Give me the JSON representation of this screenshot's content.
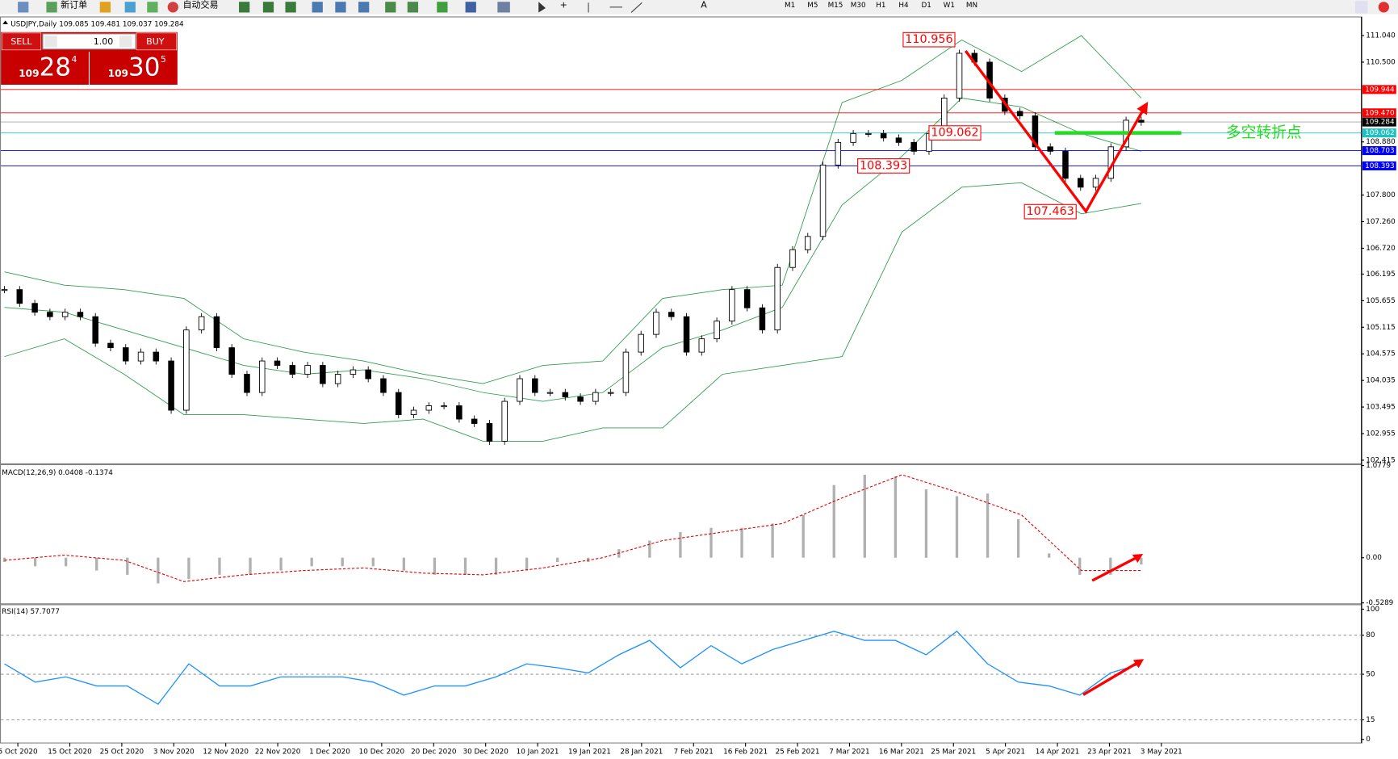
{
  "toolbar": {
    "new_order": "新订单",
    "auto_trading": "自动交易",
    "timeframes": [
      "M1",
      "M5",
      "M15",
      "M30",
      "H1",
      "H4",
      "D1",
      "W1",
      "MN"
    ]
  },
  "trade_panel": {
    "sell_label": "SELL",
    "buy_label": "BUY",
    "lot": "1.00",
    "bid": {
      "prefix": "109",
      "big": "28",
      "pip": "4"
    },
    "ask": {
      "prefix": "109",
      "big": "30",
      "pip": "5"
    }
  },
  "x_labels": [
    "5 Oct 2020",
    "15 Oct 2020",
    "25 Oct 2020",
    "3 Nov 2020",
    "12 Nov 2020",
    "22 Nov 2020",
    "1 Dec 2020",
    "10 Dec 2020",
    "20 Dec 2020",
    "30 Dec 2020",
    "10 Jan 2021",
    "19 Jan 2021",
    "28 Jan 2021",
    "7 Feb 2021",
    "16 Feb 2021",
    "25 Feb 2021",
    "7 Mar 2021",
    "16 Mar 2021",
    "25 Mar 2021",
    "5 Apr 2021",
    "14 Apr 2021",
    "23 Apr 2021",
    "3 May 2021"
  ],
  "chart_data": [
    {
      "type": "candlestick",
      "title": "USDJPY,Daily 109.085 109.481 109.037 109.284",
      "values": [
        105.88,
        105.6,
        105.42,
        105.33,
        105.42,
        105.33,
        104.79,
        104.7,
        104.43,
        104.61,
        104.43,
        103.43,
        105.06,
        105.33,
        104.7,
        104.16,
        103.79,
        104.43,
        104.34,
        104.16,
        104.34,
        103.97,
        104.16,
        104.25,
        104.07,
        103.79,
        103.34,
        103.43,
        103.52,
        103.52,
        103.25,
        103.16,
        102.8,
        103.61,
        104.07,
        103.79,
        103.79,
        103.7,
        103.61,
        103.79,
        103.79,
        104.61,
        104.97,
        105.42,
        105.33,
        104.61,
        104.88,
        105.24,
        105.88,
        105.51,
        105.06,
        106.33,
        106.69,
        106.96,
        108.41,
        108.87,
        109.05,
        109.05,
        108.96,
        108.87,
        108.69,
        109.05,
        109.77,
        110.68,
        110.5,
        109.77,
        109.5,
        109.41,
        108.78,
        108.69,
        108.14,
        107.96,
        108.14,
        108.78,
        109.32,
        109.28
      ],
      "up_color": "#ffffff",
      "down_color": "#000000",
      "bands": {
        "upper": [
          106.24,
          105.97,
          105.88,
          105.7,
          104.88,
          104.61,
          104.43,
          104.16,
          103.97,
          104.34,
          104.43,
          105.7,
          105.88,
          105.97,
          109.68,
          110.13,
          110.95,
          110.31,
          111.04,
          109.77
        ],
        "middle": [
          105.52,
          105.42,
          105.06,
          104.7,
          104.34,
          104.16,
          104.25,
          104.07,
          103.79,
          103.61,
          103.79,
          104.7,
          105.06,
          105.52,
          107.6,
          108.59,
          109.77,
          109.59,
          109.05,
          108.69
        ],
        "lower": [
          104.52,
          104.88,
          104.16,
          103.34,
          103.34,
          103.25,
          103.16,
          103.25,
          102.8,
          102.8,
          103.07,
          103.07,
          104.16,
          104.34,
          104.52,
          107.05,
          107.96,
          108.05,
          107.42,
          107.63
        ]
      },
      "band_color": "#2e9e4b",
      "ylim": [
        102.36,
        111.4
      ],
      "yticks": [
        {
          "value": 102.415,
          "label": "102.415"
        },
        102.955,
        103.495,
        104.035,
        104.575,
        105.115,
        105.655,
        106.195,
        {
          "value": 106.72,
          "label": "106.720"
        },
        {
          "value": 107.26,
          "label": "107.260"
        },
        {
          "value": 107.8,
          "label": "107.800"
        },
        {
          "value": 108.88,
          "label": "108.880"
        },
        {
          "value": 110.5,
          "label": "110.500"
        },
        {
          "value": 111.04,
          "label": "111.040"
        }
      ],
      "levels": [
        {
          "value": 109.944,
          "label": "109.944",
          "color": "#ff0000"
        },
        {
          "value": 109.47,
          "label": "109.470",
          "color": "#ff0000"
        },
        {
          "value": 109.284,
          "label": "109.284",
          "color": "#000000"
        },
        {
          "value": 109.062,
          "label": "109.062",
          "color": "#20c0c0"
        },
        {
          "value": 108.703,
          "label": "108.703",
          "color": "#0000ff"
        },
        {
          "value": 108.393,
          "label": "108.393",
          "color": "#0000ff"
        }
      ],
      "annotations": [
        110.956,
        109.062,
        108.393,
        107.463
      ],
      "pivot_label": "多空转折点",
      "pivot_level": 109.062,
      "pivot_color": "#22dd22"
    },
    {
      "type": "macd",
      "title": "MACD(12,26,9) 0.0408 -0.1374",
      "values": [
        -0.05,
        -0.1,
        -0.1,
        -0.15,
        -0.2,
        -0.3,
        -0.25,
        -0.2,
        -0.2,
        -0.15,
        -0.1,
        -0.1,
        -0.1,
        -0.15,
        -0.2,
        -0.2,
        -0.2,
        -0.15,
        -0.05,
        -0.05,
        0.1,
        0.2,
        0.3,
        0.35,
        0.35,
        0.4,
        0.5,
        0.85,
        0.97,
        0.95,
        0.8,
        0.72,
        0.75,
        0.45,
        0.05,
        -0.2,
        -0.2,
        -0.08
      ],
      "signal": [
        -0.03,
        0.03,
        -0.03,
        -0.28,
        -0.2,
        -0.15,
        -0.12,
        -0.18,
        -0.2,
        -0.12,
        0.0,
        0.2,
        0.3,
        0.4,
        0.7,
        0.97,
        0.75,
        0.5,
        -0.15,
        -0.15
      ],
      "color": "#b0b0b0",
      "signal_color": "#e00000",
      "ylim": [
        -0.5289,
        1.0779
      ],
      "yticks": [
        -0.5289,
        {
          "value": 0,
          "label": "0.00"
        },
        1.0779
      ]
    },
    {
      "type": "line",
      "title": "RSI(14) 57.7077",
      "values": [
        58,
        44,
        48,
        41,
        41,
        27,
        58,
        41,
        41,
        48,
        48,
        48,
        44,
        34,
        41,
        41,
        48,
        58,
        55,
        51,
        65,
        76,
        55,
        72,
        58,
        69,
        76,
        83,
        76,
        76,
        65,
        83,
        58,
        44,
        41,
        34,
        51,
        58
      ],
      "color": "#1e90ff",
      "ylim": [
        0,
        100
      ],
      "yticks": [
        0,
        15,
        50,
        80,
        100
      ],
      "grid": true
    }
  ]
}
